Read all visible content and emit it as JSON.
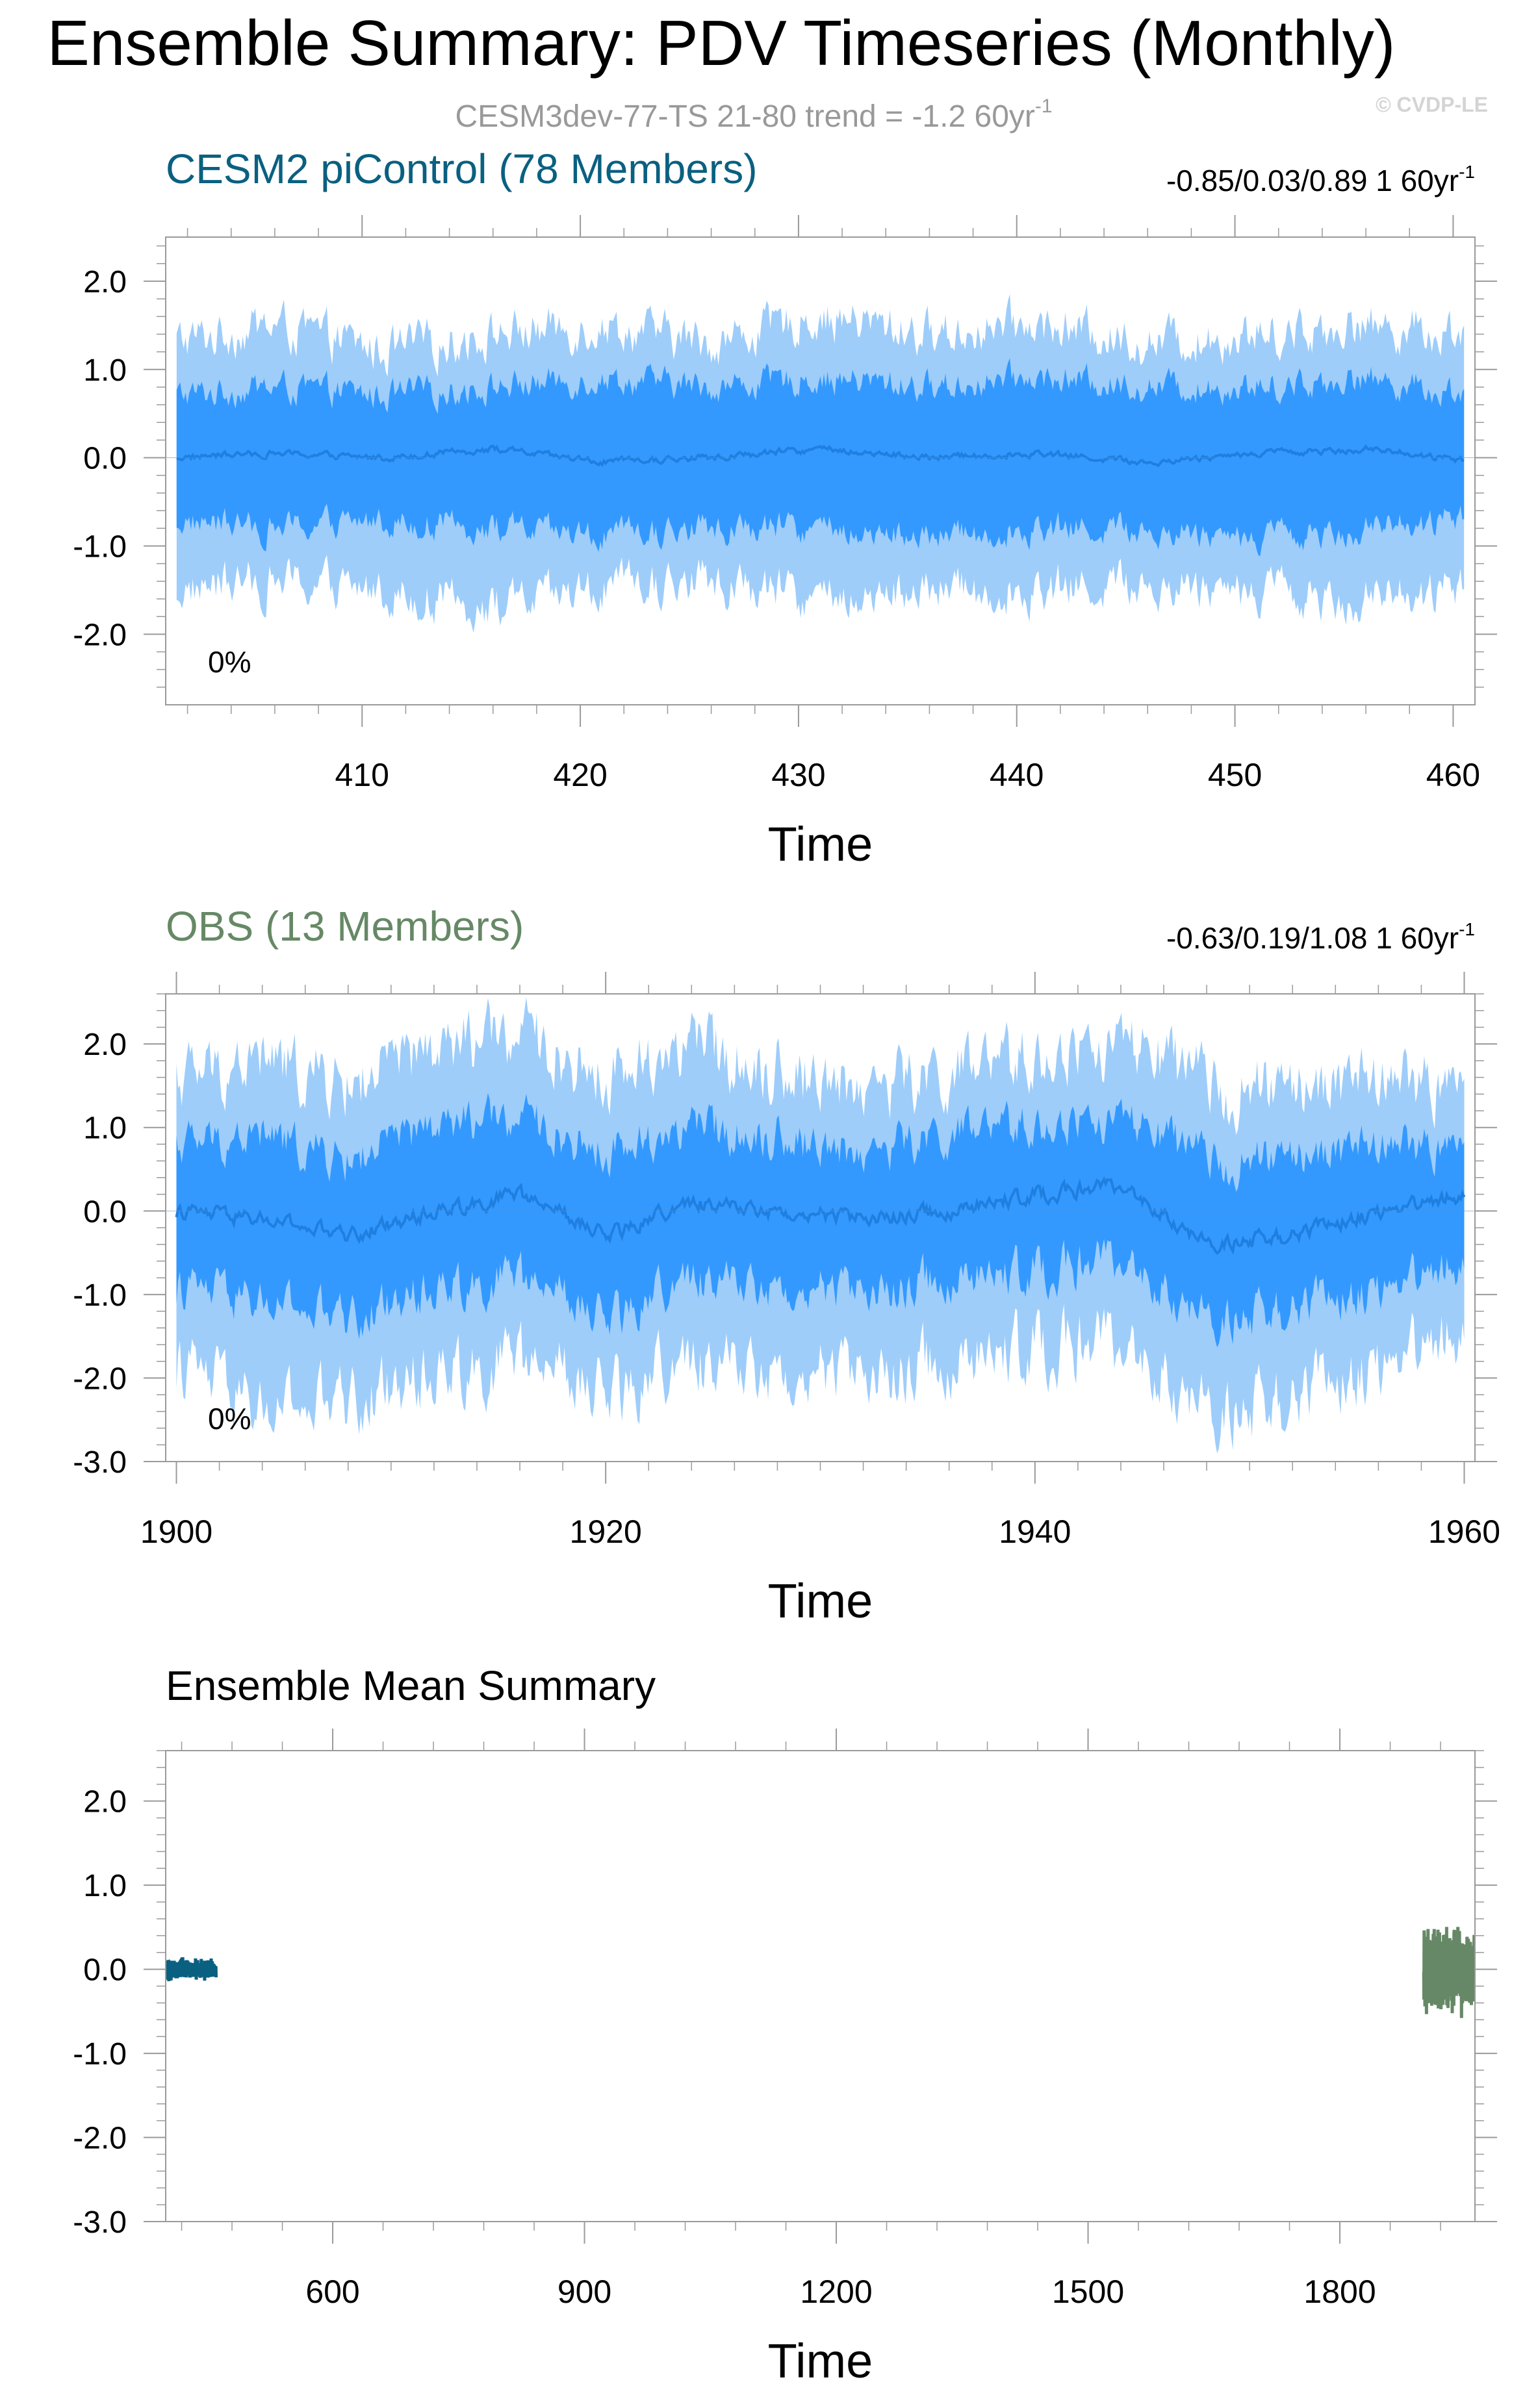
{
  "title": "Ensemble Summary: PDV Timeseries (Monthly)",
  "subtitle": {
    "text": "CESM3dev-77-TS 21-80 trend = -1.2 60yr",
    "sup": "-1"
  },
  "watermark": "© CVDP-LE",
  "colors": {
    "band_outer": "#9ecdfa",
    "band_inner": "#3399ff",
    "mean_line": "#1f7fe0",
    "picontrol": "#0a6080",
    "obs": "#668866",
    "subtitle": "#999999",
    "axis": "#000000"
  },
  "chart_data": [
    {
      "type": "area",
      "panel_title": "CESM2 piControl (78 Members)",
      "stats": {
        "text": "-0.85/0.03/0.89 1 60yr",
        "sup": "-1"
      },
      "percent_label": "0%",
      "xlabel": "Time",
      "ylabel": "",
      "xlim": [
        401,
        461
      ],
      "ylim": [
        -2.8,
        2.5
      ],
      "xticks": [
        410,
        420,
        430,
        440,
        450,
        460
      ],
      "yticks": [
        2.0,
        1.0,
        0.0,
        -1.0,
        -2.0
      ],
      "x": [
        401,
        406,
        411,
        416,
        421,
        426,
        431,
        436,
        441,
        446,
        451,
        456,
        461
      ],
      "series": [
        {
          "name": "",
          "role": "outer_upper",
          "values": [
            1.3,
            1.5,
            1.2,
            1.4,
            1.5,
            1.3,
            1.6,
            1.4,
            1.5,
            1.3,
            1.4,
            1.5,
            1.4
          ]
        },
        {
          "name": "",
          "role": "inner_upper",
          "values": [
            0.7,
            0.8,
            0.7,
            0.8,
            0.9,
            0.8,
            0.9,
            0.8,
            0.9,
            0.8,
            0.8,
            0.9,
            0.7
          ]
        },
        {
          "name": "",
          "role": "mean",
          "values": [
            0.0,
            0.05,
            0.0,
            0.1,
            -0.05,
            0.0,
            0.1,
            0.0,
            0.05,
            -0.05,
            0.05,
            0.1,
            -0.05
          ]
        },
        {
          "name": "",
          "role": "inner_lower",
          "values": [
            -0.7,
            -0.8,
            -0.7,
            -0.8,
            -0.9,
            -0.8,
            -0.8,
            -0.9,
            -0.8,
            -0.8,
            -0.9,
            -0.8,
            -0.7
          ]
        },
        {
          "name": "",
          "role": "outer_lower",
          "values": [
            -1.5,
            -1.4,
            -1.5,
            -1.7,
            -1.5,
            -1.4,
            -1.6,
            -1.5,
            -1.5,
            -1.4,
            -1.5,
            -1.6,
            -1.5
          ]
        }
      ]
    },
    {
      "type": "area",
      "panel_title": "OBS (13 Members)",
      "stats": {
        "text": "-0.63/0.19/1.08 1 60yr",
        "sup": "-1"
      },
      "percent_label": "0%",
      "xlabel": "Time",
      "ylabel": "",
      "xlim": [
        1899.5,
        1960.5
      ],
      "ylim": [
        -3.0,
        2.6
      ],
      "xticks": [
        1900,
        1920,
        1940,
        1960
      ],
      "yticks": [
        2.0,
        1.0,
        0.0,
        -1.0,
        -2.0,
        -3.0
      ],
      "x": [
        1900,
        1904,
        1908,
        1912,
        1916,
        1920,
        1924,
        1928,
        1932,
        1936,
        1940,
        1944,
        1948,
        1952,
        1956,
        1960
      ],
      "series": [
        {
          "name": "",
          "role": "outer_upper",
          "values": [
            1.6,
            1.8,
            1.5,
            1.9,
            2.1,
            1.6,
            2.0,
            1.7,
            1.5,
            1.6,
            1.8,
            2.0,
            1.5,
            1.4,
            1.6,
            1.4
          ]
        },
        {
          "name": "",
          "role": "inner_upper",
          "values": [
            0.8,
            0.9,
            0.6,
            1.0,
            1.1,
            0.7,
            1.0,
            0.9,
            0.7,
            0.9,
            1.0,
            1.1,
            0.6,
            0.6,
            0.8,
            0.7
          ]
        },
        {
          "name": "",
          "role": "mean",
          "values": [
            0.0,
            -0.1,
            -0.3,
            0.0,
            0.2,
            -0.3,
            0.1,
            0.0,
            -0.1,
            0.0,
            0.2,
            0.3,
            -0.4,
            -0.3,
            0.0,
            0.2
          ]
        },
        {
          "name": "",
          "role": "inner_lower",
          "values": [
            -0.9,
            -1.1,
            -1.3,
            -0.9,
            -0.8,
            -1.3,
            -0.8,
            -0.9,
            -1.0,
            -0.8,
            -0.7,
            -0.6,
            -1.3,
            -1.2,
            -0.9,
            -0.6
          ]
        },
        {
          "name": "",
          "role": "outer_lower",
          "values": [
            -1.8,
            -2.4,
            -2.3,
            -1.9,
            -1.8,
            -2.2,
            -1.8,
            -1.9,
            -2.0,
            -1.8,
            -1.6,
            -1.6,
            -2.4,
            -2.3,
            -1.8,
            -1.4
          ]
        }
      ]
    },
    {
      "type": "line",
      "panel_title": "Ensemble Mean Summary",
      "xlabel": "Time",
      "ylabel": "",
      "xlim": [
        401,
        1961
      ],
      "ylim": [
        -3.0,
        2.6
      ],
      "xticks": [
        600,
        900,
        1200,
        1500,
        1800
      ],
      "yticks": [
        2.0,
        1.0,
        0.0,
        -1.0,
        -2.0,
        -3.0
      ],
      "series": [
        {
          "name": "",
          "color_key": "picontrol",
          "x_range": [
            401,
            461
          ],
          "center": 0.0,
          "amplitude": 0.15
        },
        {
          "name": "",
          "color_key": "obs",
          "x_range": [
            1900,
            1960
          ],
          "center": 0.0,
          "amplitude": 0.6
        }
      ]
    }
  ]
}
